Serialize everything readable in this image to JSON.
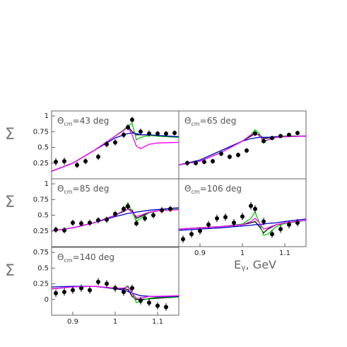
{
  "chart_data": [
    {
      "type": "scatter",
      "title": [
        "Θ",
        "cm",
        "=43 deg"
      ],
      "ylabel": "Σ",
      "xlim": [
        0.85,
        1.15
      ],
      "ylim": [
        0,
        1.08
      ],
      "yticks": [
        0.25,
        0.5,
        0.75,
        1
      ],
      "points": {
        "color": "#000000",
        "x": [
          0.86,
          0.88,
          0.91,
          0.93,
          0.96,
          0.98,
          1.0,
          1.02,
          1.03,
          1.04,
          1.06,
          1.08,
          1.1,
          1.12,
          1.14
        ],
        "values": [
          0.27,
          0.28,
          0.22,
          0.28,
          0.35,
          0.55,
          0.58,
          0.7,
          0.82,
          0.94,
          0.75,
          0.72,
          0.72,
          0.72,
          0.73
        ],
        "errors": [
          0.06,
          0.06,
          0.05,
          0.05,
          0.05,
          0.05,
          0.05,
          0.05,
          0.05,
          0.05,
          0.05,
          0.05,
          0.04,
          0.04,
          0.04
        ]
      },
      "curve_x": [
        0.85,
        0.9,
        0.95,
        1.0,
        1.02,
        1.03,
        1.04,
        1.05,
        1.06,
        1.08,
        1.1,
        1.15
      ],
      "curves": [
        {
          "color": "#000000",
          "values": [
            0.12,
            0.25,
            0.45,
            0.68,
            0.77,
            0.83,
            0.75,
            0.7,
            0.7,
            0.7,
            0.68,
            0.66
          ]
        },
        {
          "color": "#00cc00",
          "values": [
            0.12,
            0.25,
            0.45,
            0.68,
            0.78,
            0.84,
            0.88,
            0.62,
            0.66,
            0.69,
            0.68,
            0.66
          ]
        },
        {
          "color": "#0000cc",
          "values": [
            0.12,
            0.25,
            0.45,
            0.65,
            0.7,
            0.72,
            0.73,
            0.72,
            0.7,
            0.7,
            0.69,
            0.67
          ]
        },
        {
          "color": "#ff00ff",
          "values": [
            0.12,
            0.25,
            0.45,
            0.68,
            0.77,
            0.82,
            0.7,
            0.52,
            0.48,
            0.55,
            0.57,
            0.58
          ]
        }
      ]
    },
    {
      "type": "scatter",
      "title": [
        "Θ",
        "cm",
        "=65 deg"
      ],
      "xlim": [
        0.85,
        1.15
      ],
      "ylim": [
        0,
        1.08
      ],
      "points": {
        "color": "#000000",
        "x": [
          0.87,
          0.89,
          0.91,
          0.93,
          0.95,
          0.97,
          0.99,
          1.01,
          1.03,
          1.05,
          1.07,
          1.09,
          1.11,
          1.13
        ],
        "values": [
          0.25,
          0.25,
          0.27,
          0.28,
          0.4,
          0.35,
          0.38,
          0.45,
          0.72,
          0.6,
          0.65,
          0.68,
          0.7,
          0.73
        ],
        "errors": [
          0.04,
          0.04,
          0.04,
          0.04,
          0.04,
          0.04,
          0.04,
          0.04,
          0.04,
          0.04,
          0.03,
          0.03,
          0.03,
          0.03
        ]
      },
      "curve_x": [
        0.85,
        0.9,
        0.95,
        1.0,
        1.02,
        1.03,
        1.04,
        1.05,
        1.06,
        1.08,
        1.1,
        1.15
      ],
      "curves": [
        {
          "color": "#000000",
          "values": [
            0.22,
            0.28,
            0.42,
            0.6,
            0.68,
            0.72,
            0.7,
            0.64,
            0.65,
            0.67,
            0.68,
            0.68
          ]
        },
        {
          "color": "#00cc00",
          "values": [
            0.22,
            0.28,
            0.42,
            0.6,
            0.7,
            0.78,
            0.72,
            0.58,
            0.62,
            0.67,
            0.68,
            0.68
          ]
        },
        {
          "color": "#0000cc",
          "values": [
            0.22,
            0.3,
            0.45,
            0.6,
            0.64,
            0.65,
            0.66,
            0.66,
            0.66,
            0.67,
            0.67,
            0.68
          ]
        },
        {
          "color": "#ff00ff",
          "values": [
            0.22,
            0.28,
            0.42,
            0.6,
            0.7,
            0.74,
            0.68,
            0.6,
            0.62,
            0.66,
            0.67,
            0.68
          ]
        }
      ]
    },
    {
      "type": "scatter",
      "title": [
        "Θ",
        "cm",
        "=85 deg"
      ],
      "ylabel": "Σ",
      "xlim": [
        0.85,
        1.15
      ],
      "ylim": [
        0,
        1.08
      ],
      "yticks": [
        0.25,
        0.5,
        0.75,
        1
      ],
      "points": {
        "color": "#000000",
        "x": [
          0.86,
          0.88,
          0.9,
          0.92,
          0.94,
          0.96,
          0.98,
          1.0,
          1.02,
          1.03,
          1.05,
          1.07,
          1.09,
          1.11,
          1.13
        ],
        "values": [
          0.27,
          0.26,
          0.38,
          0.37,
          0.38,
          0.42,
          0.43,
          0.52,
          0.6,
          0.64,
          0.37,
          0.45,
          0.5,
          0.58,
          0.6
        ],
        "errors": [
          0.05,
          0.05,
          0.05,
          0.05,
          0.05,
          0.05,
          0.05,
          0.05,
          0.05,
          0.05,
          0.05,
          0.05,
          0.05,
          0.05,
          0.05
        ]
      },
      "curve_x": [
        0.85,
        0.9,
        0.95,
        1.0,
        1.02,
        1.03,
        1.04,
        1.05,
        1.06,
        1.08,
        1.1,
        1.15
      ],
      "curves": [
        {
          "color": "#000000",
          "values": [
            0.25,
            0.3,
            0.38,
            0.5,
            0.56,
            0.6,
            0.58,
            0.45,
            0.48,
            0.54,
            0.57,
            0.6
          ]
        },
        {
          "color": "#00cc00",
          "values": [
            0.25,
            0.3,
            0.38,
            0.5,
            0.58,
            0.7,
            0.55,
            0.4,
            0.45,
            0.54,
            0.57,
            0.6
          ]
        },
        {
          "color": "#0000cc",
          "values": [
            0.25,
            0.3,
            0.38,
            0.48,
            0.51,
            0.53,
            0.54,
            0.55,
            0.56,
            0.58,
            0.59,
            0.62
          ]
        },
        {
          "color": "#ff00ff",
          "values": [
            0.25,
            0.3,
            0.38,
            0.5,
            0.57,
            0.6,
            0.55,
            0.48,
            0.5,
            0.55,
            0.57,
            0.59
          ]
        }
      ]
    },
    {
      "type": "scatter",
      "title": [
        "Θ",
        "cm",
        "=106 deg"
      ],
      "xlabel": [
        "E",
        "γ",
        ", GeV"
      ],
      "xlim": [
        0.85,
        1.15
      ],
      "ylim": [
        0,
        1.08
      ],
      "xticks": [
        0.9,
        1,
        1.1
      ],
      "points": {
        "color": "#000000",
        "x": [
          0.86,
          0.88,
          0.9,
          0.92,
          0.94,
          0.96,
          0.98,
          1.0,
          1.02,
          1.03,
          1.05,
          1.07,
          1.09,
          1.11,
          1.13
        ],
        "values": [
          0.12,
          0.2,
          0.25,
          0.35,
          0.45,
          0.47,
          0.38,
          0.48,
          0.65,
          0.6,
          0.4,
          0.2,
          0.28,
          0.35,
          0.38
        ],
        "errors": [
          0.06,
          0.06,
          0.06,
          0.06,
          0.06,
          0.06,
          0.06,
          0.06,
          0.06,
          0.06,
          0.06,
          0.06,
          0.06,
          0.06,
          0.06
        ]
      },
      "curve_x": [
        0.85,
        0.9,
        0.95,
        1.0,
        1.02,
        1.03,
        1.04,
        1.05,
        1.06,
        1.08,
        1.1,
        1.15
      ],
      "curves": [
        {
          "color": "#000000",
          "values": [
            0.28,
            0.3,
            0.32,
            0.35,
            0.38,
            0.4,
            0.32,
            0.22,
            0.28,
            0.35,
            0.37,
            0.42
          ]
        },
        {
          "color": "#00cc00",
          "values": [
            0.28,
            0.3,
            0.32,
            0.36,
            0.45,
            0.55,
            0.38,
            0.18,
            0.2,
            0.32,
            0.37,
            0.42
          ]
        },
        {
          "color": "#0000cc",
          "values": [
            0.26,
            0.28,
            0.3,
            0.33,
            0.34,
            0.35,
            0.35,
            0.36,
            0.37,
            0.38,
            0.4,
            0.44
          ]
        },
        {
          "color": "#ff00ff",
          "values": [
            0.28,
            0.3,
            0.32,
            0.35,
            0.4,
            0.45,
            0.38,
            0.28,
            0.3,
            0.35,
            0.38,
            0.42
          ]
        }
      ]
    },
    {
      "type": "scatter",
      "title": [
        "Θ",
        "cm",
        "=140 deg"
      ],
      "ylabel": "Σ",
      "xlim": [
        0.85,
        1.15
      ],
      "ylim": [
        -0.25,
        0.83
      ],
      "yticks": [
        0,
        0.25,
        0.5,
        0.75
      ],
      "xticks": [
        0.9,
        1,
        1.1
      ],
      "points": {
        "color": "#000000",
        "x": [
          0.86,
          0.88,
          0.9,
          0.92,
          0.94,
          0.96,
          0.98,
          1.0,
          1.02,
          1.04,
          1.06,
          1.08,
          1.1,
          1.12
        ],
        "values": [
          0.1,
          0.12,
          0.15,
          0.18,
          0.15,
          0.28,
          0.25,
          0.18,
          0.12,
          0.18,
          -0.02,
          -0.05,
          -0.1,
          -0.12
        ],
        "errors": [
          0.06,
          0.06,
          0.06,
          0.06,
          0.06,
          0.06,
          0.06,
          0.06,
          0.06,
          0.06,
          0.06,
          0.06,
          0.06,
          0.06
        ]
      },
      "curve_x": [
        0.85,
        0.9,
        0.95,
        1.0,
        1.02,
        1.03,
        1.04,
        1.05,
        1.06,
        1.08,
        1.1,
        1.15
      ],
      "curves": [
        {
          "color": "#000000",
          "values": [
            0.17,
            0.2,
            0.21,
            0.18,
            0.17,
            0.16,
            0.05,
            0.0,
            0.0,
            0.01,
            0.02,
            0.04
          ]
        },
        {
          "color": "#00cc00",
          "values": [
            0.17,
            0.2,
            0.21,
            0.18,
            0.18,
            0.22,
            0.1,
            -0.05,
            -0.02,
            0.02,
            0.03,
            0.04
          ]
        },
        {
          "color": "#0000cc",
          "values": [
            0.2,
            0.21,
            0.21,
            0.17,
            0.15,
            0.13,
            0.1,
            0.08,
            0.06,
            0.05,
            0.04,
            0.05
          ]
        },
        {
          "color": "#ff00ff",
          "values": [
            0.17,
            0.2,
            0.21,
            0.18,
            0.18,
            0.2,
            0.1,
            0.02,
            0.02,
            0.05,
            0.05,
            0.06
          ]
        }
      ]
    }
  ]
}
